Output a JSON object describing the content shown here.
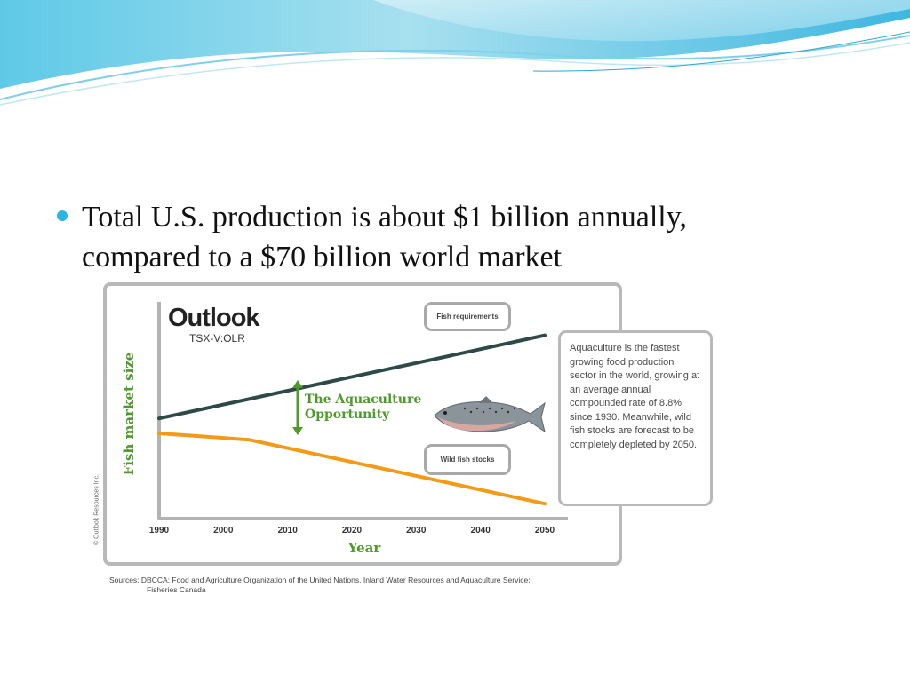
{
  "slide": {
    "bullet_text": "Total U.S. production is about $1 billion annually, compared to a $70 billion world market",
    "accent_color": "#2bb6e0"
  },
  "figure": {
    "logo_title": "Outlook",
    "logo_ticker": "TSX-V:OLR",
    "copyright": "© Outlook Resources Inc.",
    "opportunity_label": "The Aquaculture Opportunity",
    "fish_image": "salmon-icon",
    "note": "Aquaculture is the fastest growing food production sector in the world, growing at an average annual compounded rate of 8.8% since 1930. Meanwhile, wild fish stocks are forecast to be completely depleted by 2050.",
    "sources_line1": "Sources: DBCCA;  Food and Agriculture Organization of the United Nations, Inland Water Resources and Aquaculture Service;",
    "sources_line2": "Fisheries Canada"
  },
  "chart_data": {
    "type": "line",
    "title": "",
    "xlabel": "Year",
    "ylabel": "Fish market size",
    "x": [
      1990,
      2000,
      2010,
      2020,
      2030,
      2040,
      2050
    ],
    "x_ticks": [
      "1990",
      "2000",
      "2010",
      "2020",
      "2030",
      "2040",
      "2050"
    ],
    "xlim": [
      1990,
      2050
    ],
    "ylim": [
      0,
      100
    ],
    "y_ticks_shown": false,
    "grid": false,
    "series": [
      {
        "name": "Fish requirements",
        "color": "#2e4a48",
        "points": [
          [
            1990,
            47
          ],
          [
            2050,
            86
          ]
        ]
      },
      {
        "name": "Wild fish stocks",
        "color": "#f39a17",
        "points": [
          [
            1990,
            40
          ],
          [
            2004,
            37
          ],
          [
            2050,
            7
          ]
        ]
      }
    ],
    "annotations": [
      "The Aquaculture Opportunity"
    ],
    "axis_color": "#b3b3b3"
  }
}
